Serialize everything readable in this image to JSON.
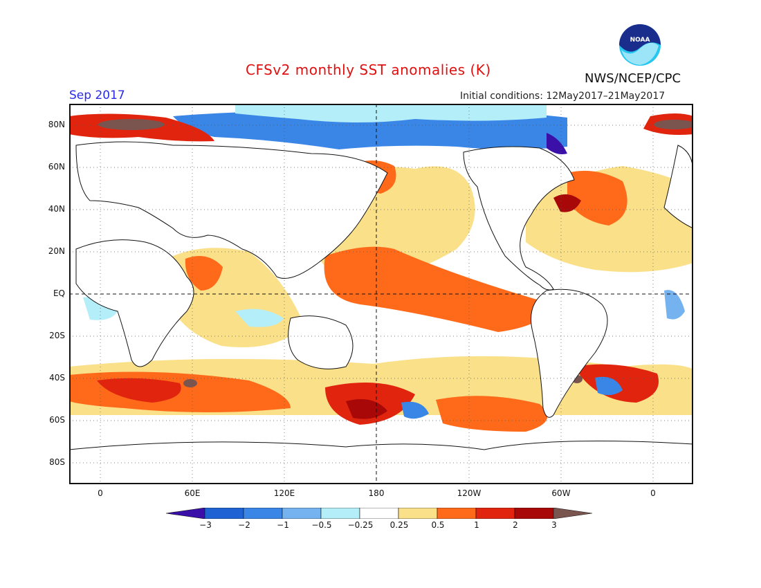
{
  "title": "CFSv2 monthly SST anomalies (K)",
  "month": "Sep 2017",
  "initial_conditions": "Initial conditions: 12May2017–21May2017",
  "organization": "NWS/NCEP/CPC",
  "logo_text": "NOAA",
  "lat_labels": [
    "80N",
    "60N",
    "40N",
    "20N",
    "EQ",
    "20S",
    "40S",
    "60S",
    "80S"
  ],
  "lon_labels": [
    "0",
    "60E",
    "120E",
    "180",
    "120W",
    "60W",
    "0"
  ],
  "colorbar": {
    "ticks": [
      "−3",
      "−2",
      "−1",
      "−0.5",
      "−0.25",
      "0.25",
      "0.5",
      "1",
      "2",
      "3"
    ],
    "colors": [
      "#3a10a8",
      "#1f62d4",
      "#3a86e6",
      "#74b2f0",
      "#b4eef8",
      "#ffffff",
      "#fbe08a",
      "#ff6a1a",
      "#e0240e",
      "#a80808",
      "#7a5550"
    ]
  }
}
